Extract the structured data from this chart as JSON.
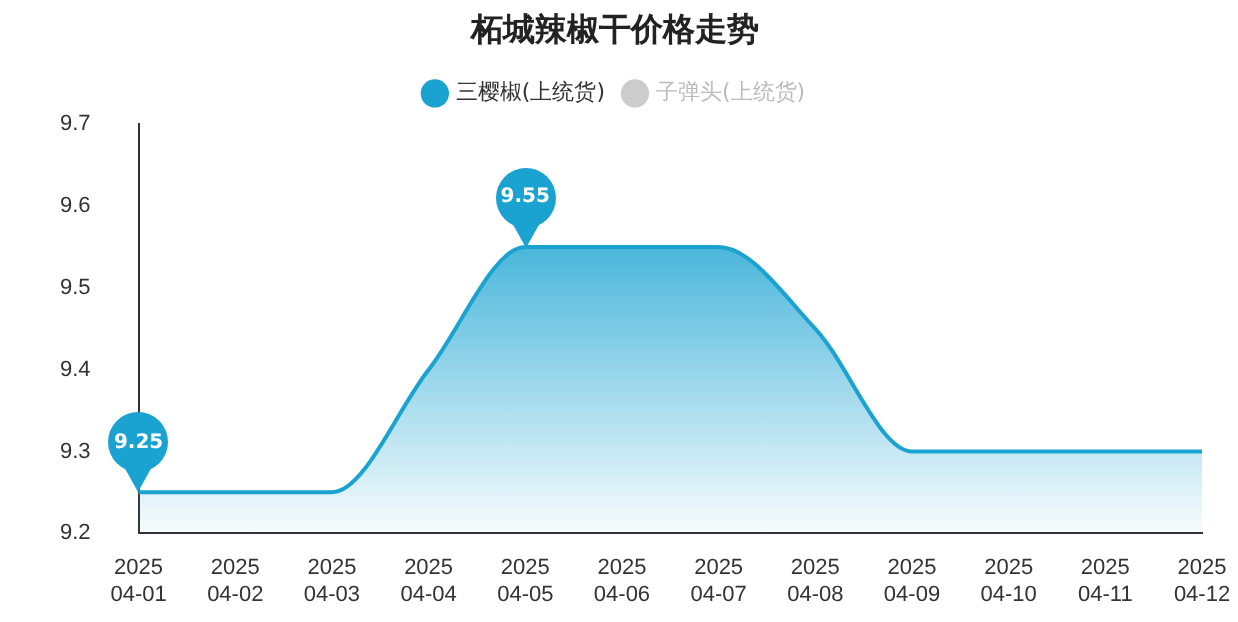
{
  "chart_data": {
    "type": "area",
    "title": "柘城辣椒干价格走势",
    "categories": [
      "2025\n04-01",
      "2025\n04-02",
      "2025\n04-03",
      "2025\n04-04",
      "2025\n04-05",
      "2025\n04-06",
      "2025\n04-07",
      "2025\n04-08",
      "2025\n04-09",
      "2025\n04-10",
      "2025\n04-11",
      "2025\n04-12"
    ],
    "series": [
      {
        "name": "三樱椒(上统货)",
        "color": "#1aa3d1",
        "values": [
          9.25,
          9.25,
          9.25,
          9.4,
          9.55,
          9.55,
          9.55,
          9.45,
          9.3,
          9.3,
          9.3,
          9.3
        ]
      },
      {
        "name": "子弹头(上统货)",
        "color": "#cccccc",
        "values": [
          null,
          null,
          null,
          null,
          null,
          null,
          null,
          null,
          null,
          null,
          null,
          null
        ]
      }
    ],
    "ylim": [
      9.2,
      9.7
    ],
    "yticks": [
      9.2,
      9.3,
      9.4,
      9.5,
      9.6,
      9.7
    ],
    "grid": false,
    "legend": "top",
    "annotations": [
      {
        "text": "9.25",
        "x": "2025\n04-01",
        "y": 9.25
      },
      {
        "text": "9.55",
        "x": "2025\n04-05",
        "y": 9.55
      }
    ]
  }
}
